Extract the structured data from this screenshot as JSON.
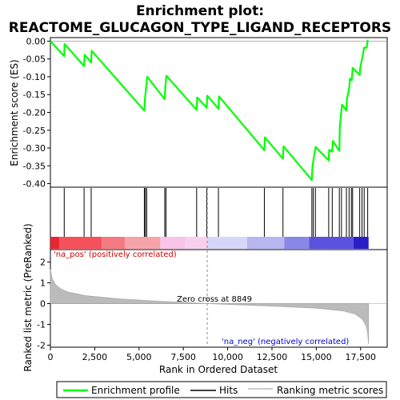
{
  "chart_data": {
    "type": "line",
    "title_line1": "Enrichment plot:",
    "title_line2": "REACTOME_GLUCAGON_TYPE_LIGAND_RECEPTORS",
    "es_panel": {
      "ylabel": "Enrichment score (ES)",
      "ylim": [
        -0.41,
        0.01
      ],
      "yticks": [
        0.0,
        -0.05,
        -0.1,
        -0.15,
        -0.2,
        -0.25,
        -0.3,
        -0.35,
        -0.4
      ],
      "ytick_labels": [
        "0.00",
        "-0.05",
        "-0.10",
        "-0.15",
        "-0.20",
        "-0.25",
        "-0.30",
        "-0.35",
        "-0.40"
      ],
      "series_name": "Enrichment profile",
      "color": "#00ff00",
      "points": [
        [
          0,
          0.0
        ],
        [
          780,
          -0.042
        ],
        [
          800,
          -0.008
        ],
        [
          1900,
          -0.07
        ],
        [
          1930,
          -0.038
        ],
        [
          2300,
          -0.06
        ],
        [
          2330,
          -0.027
        ],
        [
          5300,
          -0.195
        ],
        [
          5340,
          -0.16
        ],
        [
          5400,
          -0.13
        ],
        [
          5460,
          -0.1
        ],
        [
          6450,
          -0.163
        ],
        [
          6480,
          -0.13
        ],
        [
          6540,
          -0.097
        ],
        [
          8250,
          -0.193
        ],
        [
          8280,
          -0.158
        ],
        [
          8820,
          -0.187
        ],
        [
          8850,
          -0.153
        ],
        [
          9480,
          -0.19
        ],
        [
          9510,
          -0.155
        ],
        [
          12070,
          -0.306
        ],
        [
          12100,
          -0.27
        ],
        [
          13120,
          -0.33
        ],
        [
          13150,
          -0.295
        ],
        [
          14750,
          -0.39
        ],
        [
          14780,
          -0.355
        ],
        [
          14860,
          -0.325
        ],
        [
          14960,
          -0.297
        ],
        [
          15700,
          -0.335
        ],
        [
          15730,
          -0.305
        ],
        [
          15900,
          -0.31
        ],
        [
          15930,
          -0.28
        ],
        [
          16300,
          -0.308
        ],
        [
          16330,
          -0.24
        ],
        [
          16450,
          -0.178
        ],
        [
          16700,
          -0.195
        ],
        [
          16730,
          -0.16
        ],
        [
          16850,
          -0.135
        ],
        [
          16900,
          -0.105
        ],
        [
          17000,
          -0.11
        ],
        [
          17050,
          -0.075
        ],
        [
          17450,
          -0.095
        ],
        [
          17480,
          -0.075
        ],
        [
          17600,
          -0.045
        ],
        [
          17700,
          -0.018
        ],
        [
          17850,
          -0.018
        ],
        [
          17900,
          0.004
        ]
      ]
    },
    "hits": [
      780,
      1900,
      2300,
      5300,
      5360,
      5430,
      6450,
      6520,
      8250,
      8820,
      9480,
      12070,
      13120,
      14750,
      14830,
      14950,
      15700,
      15900,
      16300,
      16420,
      16700,
      16850,
      16980,
      17050,
      17450,
      17580,
      17700,
      17900
    ],
    "color_bar": {
      "segments": [
        {
          "from": 0,
          "to": 500,
          "color": "#e8262f"
        },
        {
          "from": 500,
          "to": 2900,
          "color": "#f5515b"
        },
        {
          "from": 2900,
          "to": 4200,
          "color": "#f57a82"
        },
        {
          "from": 4200,
          "to": 6200,
          "color": "#f5a3a8"
        },
        {
          "from": 6200,
          "to": 7600,
          "color": "#f8c4e8"
        },
        {
          "from": 7600,
          "to": 8849,
          "color": "#f8d0ee"
        },
        {
          "from": 8849,
          "to": 11100,
          "color": "#d6d6f8"
        },
        {
          "from": 11100,
          "to": 13200,
          "color": "#b6b6f0"
        },
        {
          "from": 13200,
          "to": 14600,
          "color": "#8888e6"
        },
        {
          "from": 14600,
          "to": 17100,
          "color": "#5a52dc"
        },
        {
          "from": 17100,
          "to": 17950,
          "color": "#2a1fc4"
        }
      ]
    },
    "metric_panel": {
      "ylabel": "Ranked list metric (PreRanked)",
      "ylim": [
        -2.1,
        2.6
      ],
      "yticks": [
        2,
        1,
        0,
        -1,
        -2
      ],
      "ytick_labels": [
        "2",
        "1",
        "0",
        "-1",
        "-2"
      ],
      "series_name": "Ranking metric scores",
      "points": [
        [
          0,
          1.65
        ],
        [
          100,
          1.2
        ],
        [
          300,
          0.9
        ],
        [
          600,
          0.7
        ],
        [
          1000,
          0.55
        ],
        [
          2000,
          0.38
        ],
        [
          4000,
          0.22
        ],
        [
          6000,
          0.12
        ],
        [
          8849,
          0.0
        ],
        [
          11000,
          -0.07
        ],
        [
          13000,
          -0.14
        ],
        [
          15000,
          -0.22
        ],
        [
          16500,
          -0.35
        ],
        [
          17200,
          -0.5
        ],
        [
          17600,
          -0.75
        ],
        [
          17800,
          -1.05
        ],
        [
          17900,
          -1.4
        ],
        [
          17950,
          -1.95
        ]
      ],
      "pos_label": "'na_pos' (positively correlated)",
      "neg_label": "'na_neg' (negatively correlated)",
      "zero_cross_label": "Zero cross at 8849",
      "zero_cross": 8849
    },
    "xlabel": "Rank in Ordered Dataset",
    "xlim": [
      0,
      19000
    ],
    "xticks": [
      0,
      2500,
      5000,
      7500,
      10000,
      12500,
      15000,
      17500
    ],
    "xtick_labels": [
      "0",
      "2,500",
      "5,000",
      "7,500",
      "10,000",
      "12,500",
      "15,000",
      "17,500"
    ],
    "legend": {
      "placement": "bottom",
      "items": [
        {
          "label": "Enrichment profile",
          "color": "#00ff00"
        },
        {
          "label": "Hits",
          "color": "#000000"
        },
        {
          "label": "Ranking metric scores",
          "color": "#bbbbbb"
        }
      ]
    }
  }
}
